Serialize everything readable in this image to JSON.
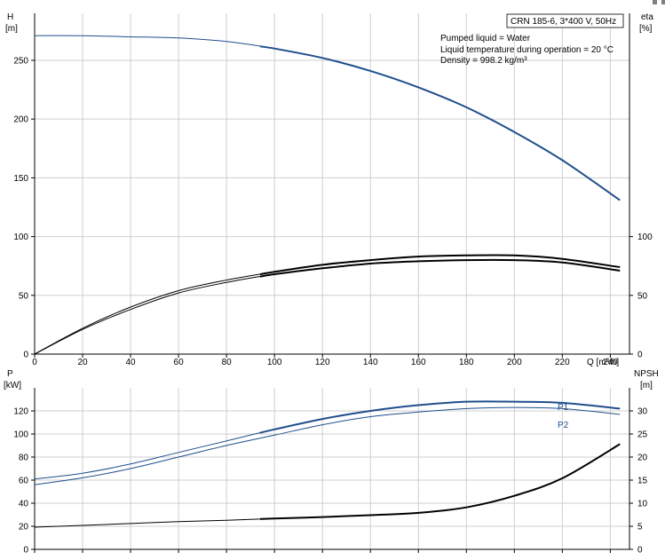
{
  "corner_marks": [
    "square",
    "dash"
  ],
  "chart_data": [
    {
      "type": "line",
      "panel": "top",
      "title_box": "CRN 185-6, 3*400 V, 50Hz",
      "annotations": [
        "Pumped liquid = Water",
        "Liquid temperature during operation = 20 °C",
        "Density = 998.2 kg/m³"
      ],
      "xlabel": "Q [m³/h]",
      "xticks": [
        0,
        20,
        40,
        60,
        80,
        100,
        120,
        140,
        160,
        180,
        200,
        220,
        240
      ],
      "xlim": [
        0,
        248
      ],
      "left_axis": {
        "label": "H",
        "unit": "[m]",
        "lim": [
          0,
          290
        ],
        "ticks": [
          0,
          50,
          100,
          150,
          200,
          250
        ]
      },
      "right_axis": {
        "label": "eta",
        "unit": "[%]",
        "lim": [
          0,
          290
        ],
        "ticks": [
          0,
          50,
          100
        ]
      },
      "grid": true,
      "series": [
        {
          "key": "H",
          "axis": "left",
          "color": "#1f4e8c",
          "bold_from": 94,
          "x": [
            0,
            20,
            40,
            60,
            80,
            100,
            120,
            140,
            160,
            180,
            200,
            220,
            244
          ],
          "y": [
            271,
            271,
            270,
            269,
            266,
            260,
            252,
            241,
            227,
            210,
            189,
            165,
            131
          ]
        },
        {
          "key": "eta_upper",
          "axis": "right",
          "color": "#000000",
          "bold_from": 94,
          "x": [
            0,
            20,
            40,
            60,
            80,
            100,
            120,
            140,
            160,
            180,
            200,
            220,
            244
          ],
          "y": [
            0,
            22,
            40,
            54,
            63,
            70,
            76,
            80,
            83,
            84,
            84,
            81,
            74
          ]
        },
        {
          "key": "eta_lower",
          "axis": "right",
          "color": "#000000",
          "bold_from": 94,
          "x": [
            0,
            20,
            40,
            60,
            80,
            100,
            120,
            140,
            160,
            180,
            200,
            220,
            244
          ],
          "y": [
            0,
            21,
            38,
            52,
            61,
            68,
            73,
            77,
            79,
            80,
            80,
            78,
            71
          ]
        }
      ]
    },
    {
      "type": "line",
      "panel": "bottom",
      "xlim": [
        0,
        248
      ],
      "left_axis": {
        "label": "P",
        "unit": "[kW]",
        "lim": [
          0,
          140
        ],
        "ticks": [
          0,
          20,
          40,
          60,
          80,
          100,
          120
        ]
      },
      "right_axis": {
        "label": "NPSH",
        "unit": "[m]",
        "lim": [
          0,
          35
        ],
        "ticks": [
          0,
          5,
          10,
          15,
          20,
          25,
          30
        ]
      },
      "grid": true,
      "series": [
        {
          "name": "P1",
          "axis": "left",
          "color": "#1f4e8c",
          "bold_from": 94,
          "x": [
            0,
            20,
            40,
            60,
            80,
            100,
            120,
            140,
            160,
            180,
            200,
            220,
            244
          ],
          "y": [
            61,
            66,
            74,
            84,
            94,
            104,
            113,
            120,
            125,
            128,
            128,
            127,
            122
          ]
        },
        {
          "name": "P2",
          "axis": "left",
          "color": "#1f4e8c",
          "bold_from": 999,
          "x": [
            0,
            20,
            40,
            60,
            80,
            100,
            120,
            140,
            160,
            180,
            200,
            220,
            244
          ],
          "y": [
            56,
            62,
            70,
            80,
            90,
            99,
            108,
            115,
            119,
            122,
            123,
            122,
            117
          ]
        },
        {
          "key": "NPSH",
          "axis": "right",
          "color": "#000000",
          "bold_from": 94,
          "x": [
            0,
            20,
            40,
            60,
            80,
            100,
            120,
            140,
            160,
            180,
            200,
            220,
            244
          ],
          "y": [
            4.8,
            5.2,
            5.6,
            6.0,
            6.3,
            6.7,
            7.0,
            7.4,
            7.9,
            9.1,
            11.6,
            15.4,
            22.8
          ]
        }
      ]
    }
  ]
}
